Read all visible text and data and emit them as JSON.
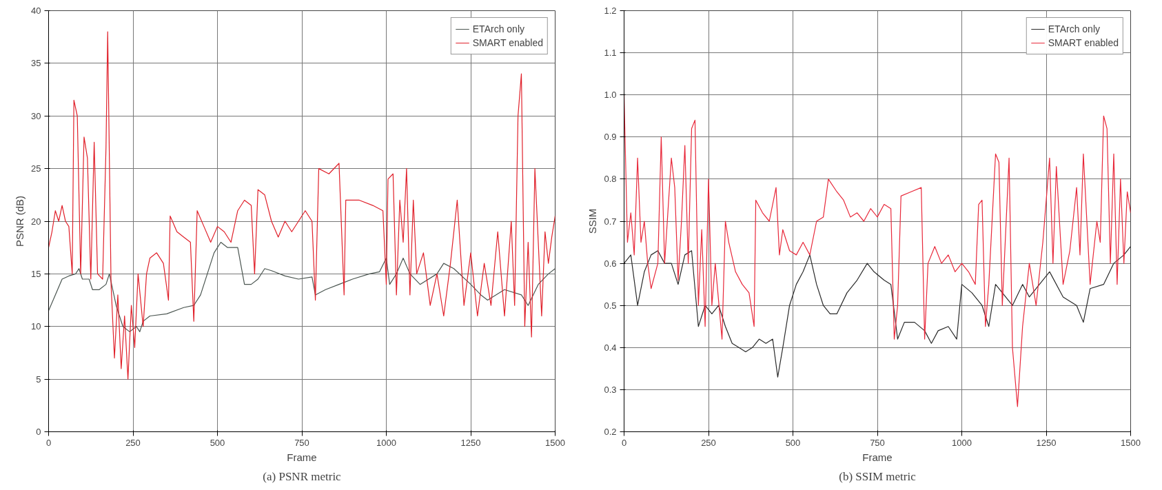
{
  "chart_data": [
    {
      "type": "line",
      "xlabel": "Frame",
      "ylabel": "PSNR (dB)",
      "annotations": [
        "(a) PSNR metric"
      ],
      "xlim": [
        0,
        1500
      ],
      "xticks": [
        0,
        250,
        500,
        750,
        1000,
        1250,
        1500
      ],
      "ylim": [
        0,
        40
      ],
      "yticks": [
        0,
        5,
        10,
        15,
        20,
        25,
        30,
        35,
        40
      ],
      "grid": true,
      "legend": "top right",
      "series": [
        {
          "name": "ETArch only",
          "color": "#4a5550",
          "x": [
            0,
            20,
            40,
            60,
            80,
            90,
            100,
            120,
            130,
            150,
            170,
            180,
            200,
            220,
            240,
            260,
            270,
            280,
            300,
            350,
            400,
            430,
            450,
            470,
            490,
            510,
            530,
            560,
            580,
            600,
            620,
            640,
            660,
            700,
            740,
            780,
            790,
            820,
            860,
            900,
            950,
            980,
            1000,
            1010,
            1030,
            1050,
            1070,
            1100,
            1150,
            1170,
            1200,
            1250,
            1280,
            1300,
            1350,
            1400,
            1420,
            1450,
            1480,
            1500
          ],
          "values": [
            11.5,
            13,
            14.5,
            14.8,
            15,
            15.5,
            14.5,
            14.5,
            13.5,
            13.5,
            14,
            15,
            12,
            10,
            9.5,
            10,
            9.5,
            10.5,
            11,
            11.2,
            11.8,
            12,
            13,
            15,
            17,
            18,
            17.5,
            17.5,
            14,
            14,
            14.5,
            15.5,
            15.3,
            14.8,
            14.5,
            14.7,
            13,
            13.5,
            14,
            14.5,
            15,
            15.2,
            16.5,
            14,
            15,
            16.5,
            15,
            14,
            15,
            16,
            15.5,
            14,
            13,
            12.5,
            13.5,
            13,
            12,
            14,
            15,
            15.5
          ]
        },
        {
          "name": "SMART enabled",
          "color": "#e0202a",
          "x": [
            0,
            10,
            20,
            30,
            40,
            50,
            60,
            70,
            75,
            85,
            95,
            105,
            115,
            125,
            135,
            145,
            160,
            170,
            175,
            185,
            195,
            205,
            215,
            225,
            235,
            245,
            255,
            265,
            280,
            290,
            300,
            320,
            340,
            355,
            360,
            380,
            400,
            420,
            430,
            440,
            460,
            480,
            500,
            520,
            540,
            560,
            580,
            600,
            610,
            620,
            640,
            660,
            680,
            700,
            720,
            740,
            760,
            780,
            790,
            800,
            830,
            860,
            875,
            880,
            920,
            960,
            990,
            1000,
            1005,
            1020,
            1030,
            1040,
            1050,
            1060,
            1070,
            1080,
            1090,
            1110,
            1130,
            1150,
            1170,
            1190,
            1210,
            1230,
            1250,
            1270,
            1290,
            1310,
            1330,
            1350,
            1370,
            1380,
            1390,
            1400,
            1410,
            1420,
            1430,
            1440,
            1460,
            1470,
            1480,
            1490,
            1500
          ],
          "values": [
            17.5,
            19,
            21,
            20,
            21.5,
            20,
            19.5,
            15,
            31.5,
            30,
            15,
            28,
            26,
            14.5,
            27.5,
            15,
            14.5,
            27,
            38,
            14,
            7,
            13,
            6,
            11,
            5,
            12,
            8,
            15,
            10,
            15,
            16.5,
            17,
            16,
            12.5,
            20.5,
            19,
            18.5,
            18,
            10.5,
            21,
            19.5,
            18,
            19.5,
            19,
            18,
            21,
            22,
            21.5,
            15,
            23,
            22.5,
            20,
            18.5,
            20,
            19,
            20,
            21,
            20,
            12.5,
            25,
            24.5,
            25.5,
            13,
            22,
            22,
            21.5,
            21,
            14,
            24,
            24.5,
            13,
            22,
            18,
            25,
            13,
            22,
            15,
            17,
            12,
            15,
            11,
            16,
            22,
            12,
            17,
            11,
            16,
            12,
            19,
            11,
            20,
            12,
            30,
            34,
            10,
            18,
            9,
            25,
            11,
            19,
            16,
            18.5,
            20.5
          ]
        }
      ]
    },
    {
      "type": "line",
      "xlabel": "Frame",
      "ylabel": "SSIM",
      "annotations": [
        "(b) SSIM metric"
      ],
      "xlim": [
        0,
        1500
      ],
      "xticks": [
        0,
        250,
        500,
        750,
        1000,
        1250,
        1500
      ],
      "ylim": [
        0.2,
        1.2
      ],
      "yticks": [
        0.2,
        0.3,
        0.4,
        0.5,
        0.6,
        0.7,
        0.8,
        0.9,
        {
          "value": 1.0,
          "label": "1.0"
        },
        1.1,
        1.2
      ],
      "grid": true,
      "legend": "top right",
      "series": [
        {
          "name": "ETArch only",
          "color": "#2a2a2a",
          "x": [
            0,
            20,
            40,
            60,
            80,
            100,
            120,
            140,
            160,
            180,
            200,
            220,
            240,
            260,
            280,
            300,
            320,
            340,
            360,
            380,
            400,
            420,
            440,
            455,
            470,
            490,
            510,
            530,
            550,
            570,
            590,
            610,
            630,
            660,
            690,
            720,
            740,
            770,
            790,
            810,
            830,
            860,
            890,
            910,
            930,
            960,
            985,
            1000,
            1030,
            1060,
            1080,
            1100,
            1130,
            1150,
            1180,
            1200,
            1230,
            1260,
            1300,
            1340,
            1360,
            1380,
            1420,
            1450,
            1480,
            1500
          ],
          "values": [
            0.6,
            0.62,
            0.5,
            0.58,
            0.62,
            0.63,
            0.6,
            0.6,
            0.55,
            0.62,
            0.63,
            0.45,
            0.5,
            0.48,
            0.5,
            0.45,
            0.41,
            0.4,
            0.39,
            0.4,
            0.42,
            0.41,
            0.42,
            0.33,
            0.4,
            0.5,
            0.55,
            0.58,
            0.62,
            0.55,
            0.5,
            0.48,
            0.48,
            0.53,
            0.56,
            0.6,
            0.58,
            0.56,
            0.55,
            0.42,
            0.46,
            0.46,
            0.44,
            0.41,
            0.44,
            0.45,
            0.42,
            0.55,
            0.53,
            0.5,
            0.45,
            0.55,
            0.52,
            0.5,
            0.55,
            0.52,
            0.55,
            0.58,
            0.52,
            0.5,
            0.46,
            0.54,
            0.55,
            0.6,
            0.62,
            0.64
          ]
        },
        {
          "name": "SMART enabled",
          "color": "#e8283a",
          "x": [
            0,
            10,
            20,
            30,
            40,
            50,
            60,
            70,
            80,
            100,
            110,
            120,
            140,
            150,
            160,
            170,
            180,
            190,
            200,
            210,
            220,
            230,
            240,
            250,
            260,
            270,
            290,
            300,
            310,
            330,
            350,
            370,
            385,
            390,
            410,
            430,
            450,
            460,
            470,
            490,
            510,
            530,
            550,
            570,
            590,
            605,
            630,
            650,
            670,
            690,
            710,
            730,
            750,
            770,
            790,
            800,
            810,
            820,
            850,
            880,
            890,
            900,
            920,
            940,
            960,
            980,
            1000,
            1020,
            1040,
            1050,
            1060,
            1070,
            1080,
            1100,
            1110,
            1120,
            1140,
            1150,
            1165,
            1180,
            1200,
            1220,
            1240,
            1260,
            1270,
            1280,
            1300,
            1320,
            1340,
            1350,
            1360,
            1380,
            1400,
            1410,
            1420,
            1430,
            1440,
            1450,
            1460,
            1470,
            1480,
            1490,
            1500
          ],
          "values": [
            1.0,
            0.65,
            0.72,
            0.62,
            0.85,
            0.65,
            0.7,
            0.6,
            0.54,
            0.6,
            0.9,
            0.6,
            0.85,
            0.78,
            0.56,
            0.7,
            0.88,
            0.6,
            0.92,
            0.94,
            0.5,
            0.68,
            0.45,
            0.8,
            0.5,
            0.6,
            0.42,
            0.7,
            0.65,
            0.58,
            0.55,
            0.53,
            0.45,
            0.75,
            0.72,
            0.7,
            0.78,
            0.62,
            0.68,
            0.63,
            0.62,
            0.65,
            0.62,
            0.7,
            0.71,
            0.8,
            0.77,
            0.75,
            0.71,
            0.72,
            0.7,
            0.73,
            0.71,
            0.74,
            0.73,
            0.42,
            0.5,
            0.76,
            0.77,
            0.78,
            0.42,
            0.6,
            0.64,
            0.6,
            0.62,
            0.58,
            0.6,
            0.58,
            0.55,
            0.74,
            0.75,
            0.45,
            0.55,
            0.86,
            0.84,
            0.5,
            0.85,
            0.4,
            0.26,
            0.45,
            0.6,
            0.5,
            0.65,
            0.85,
            0.6,
            0.83,
            0.55,
            0.63,
            0.78,
            0.62,
            0.86,
            0.55,
            0.7,
            0.65,
            0.95,
            0.92,
            0.6,
            0.86,
            0.55,
            0.8,
            0.6,
            0.77,
            0.72
          ]
        }
      ]
    }
  ]
}
